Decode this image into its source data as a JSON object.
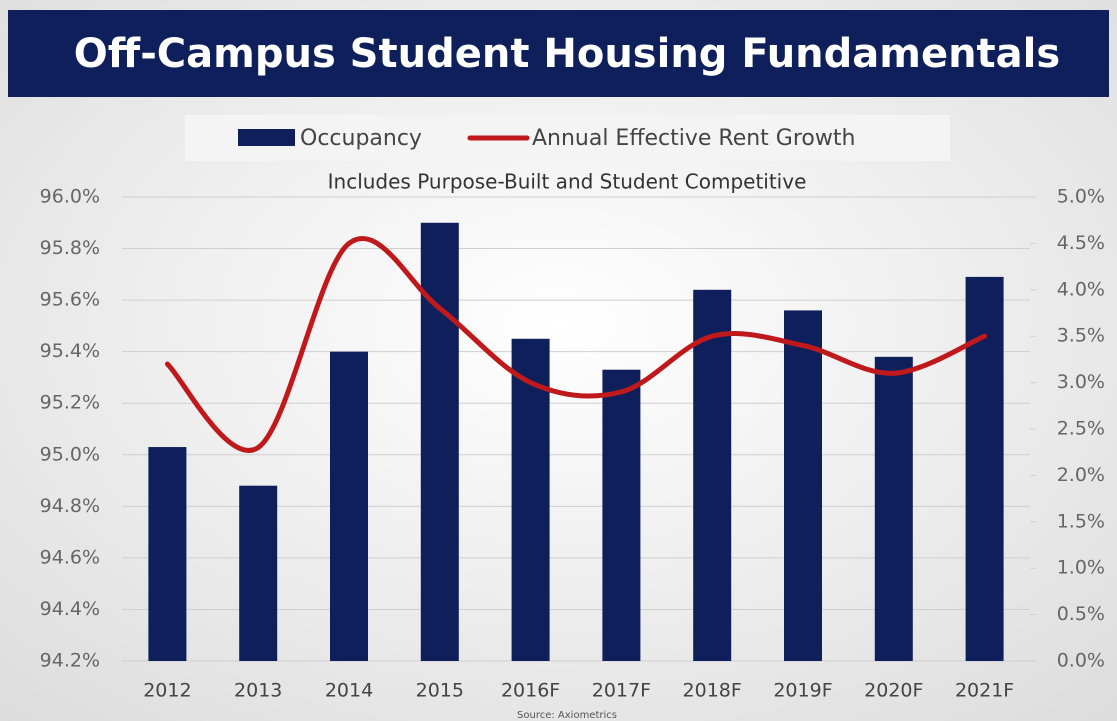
{
  "chart_data": {
    "type": "bar_line",
    "title": "Off-Campus Student Housing Fundamentals",
    "subtitle": "Includes Purpose-Built and Student Competitive",
    "source": "Source: Axiometrics",
    "categories": [
      "2012",
      "2013",
      "2014",
      "2015",
      "2016F",
      "2017F",
      "2018F",
      "2019F",
      "2020F",
      "2021F"
    ],
    "series": [
      {
        "name": "Occupancy",
        "color": "#0e1f5b",
        "kind": "bar",
        "values": [
          95.03,
          94.88,
          95.4,
          95.9,
          95.45,
          95.33,
          95.64,
          95.56,
          95.38,
          95.69
        ]
      },
      {
        "name": "Annual Effective Rent Growth",
        "color": "#c0191c",
        "kind": "line",
        "axis": "y2",
        "values": [
          3.2,
          2.3,
          4.5,
          3.8,
          3.0,
          2.9,
          3.5,
          3.4,
          3.1,
          3.5
        ]
      }
    ],
    "ylim": [
      94.2,
      96.0
    ],
    "yticks": [
      {
        "value": 94.2,
        "label": "94.2%"
      },
      {
        "value": 94.4,
        "label": "94.4%"
      },
      {
        "value": 94.6,
        "label": "94.6%"
      },
      {
        "value": 94.8,
        "label": "94.8%"
      },
      {
        "value": 95.0,
        "label": "95.0%"
      },
      {
        "value": 95.2,
        "label": "95.2%"
      },
      {
        "value": 95.4,
        "label": "95.4%"
      },
      {
        "value": 95.6,
        "label": "95.6%"
      },
      {
        "value": 95.8,
        "label": "95.8%"
      },
      {
        "value": 96.0,
        "label": "96.0%"
      }
    ],
    "y2lim": [
      0,
      5
    ],
    "y2ticks": [
      {
        "value": 0,
        "label": "0.0%"
      },
      {
        "value": 0.5,
        "label": "0.5%"
      },
      {
        "value": 1,
        "label": "1.0%"
      },
      {
        "value": 1.5,
        "label": "1.5%"
      },
      {
        "value": 2,
        "label": "2.0%"
      },
      {
        "value": 2.5,
        "label": "2.5%"
      },
      {
        "value": 3,
        "label": "3.0%"
      },
      {
        "value": 3.5,
        "label": "3.5%"
      },
      {
        "value": 4,
        "label": "4.0%"
      },
      {
        "value": 4.5,
        "label": "4.5%"
      },
      {
        "value": 5,
        "label": "5.0%"
      }
    ],
    "grid": true,
    "legend": "top"
  }
}
